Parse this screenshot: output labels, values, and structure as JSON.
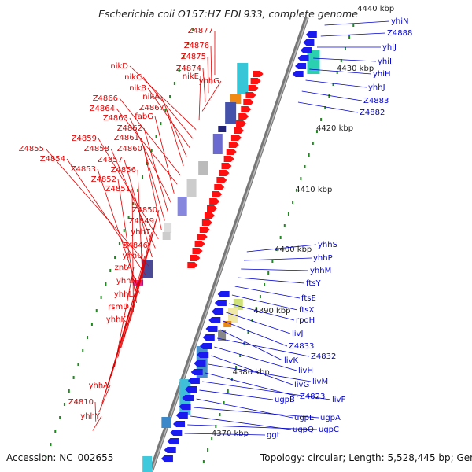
{
  "title": "Escherichia coli O157:H7 EDL933, complete genome",
  "accession": "Accession: NC_002655",
  "topology": "Topology: circular; Length: 5,528,445 bp; Genes: 5,426",
  "colors": {
    "forward_label": "#e00000",
    "reverse_label": "#0000cc",
    "forward_gene": "#ff1010",
    "reverse_gene": "#1a1aee",
    "backbone": "#888888",
    "ruler_tick": "#228822"
  },
  "ruler": [
    {
      "label": "4440 kbp",
      "kbp": 4440
    },
    {
      "label": "4430 kbp",
      "kbp": 4430
    },
    {
      "label": "4420 kbp",
      "kbp": 4420
    },
    {
      "label": "4410 kbp",
      "kbp": 4410
    },
    {
      "label": "4400 kbp",
      "kbp": 4400
    },
    {
      "label": "4390 kbp",
      "kbp": 4390
    },
    {
      "label": "4380 kbp",
      "kbp": 4380
    },
    {
      "label": "4370 kbp",
      "kbp": 4370
    }
  ],
  "forward_genes": [
    "Z4877",
    "Z4876",
    "Z4875",
    "Z4874",
    "yhhG",
    "nikE",
    "nikD",
    "nikC",
    "nikB",
    "nikA",
    "Z4867",
    "Z4866",
    "Z4864",
    "fabG",
    "Z4863",
    "Z4862",
    "Z4861",
    "Z4860",
    "Z4859",
    "Z4858",
    "Z4857",
    "Z4855",
    "Z4854",
    "Z4856",
    "Z4853",
    "Z4852",
    "Z4851",
    "Z4850",
    "Z4849",
    "yhhT",
    "Z4846",
    "yhhQ",
    "zntA",
    "yhhN",
    "yhhL",
    "rsmD",
    "yhhK",
    "yhhA",
    "Z4810",
    "yhhY"
  ],
  "reverse_genes": [
    "yhiN",
    "Z4888",
    "yhiJ",
    "yhiI",
    "yhiH",
    "yhhJ",
    "Z4883",
    "Z4882",
    "yhhS",
    "yhhP",
    "yhhM",
    "ftsY",
    "ftsE",
    "ftsX",
    "rpoH",
    "livJ",
    "Z4833",
    "livK",
    "Z4832",
    "livH",
    "livG",
    "livM",
    "Z4823",
    "livF",
    "ugpB",
    "ugpE",
    "ugpA",
    "ugpQ",
    "ugpC",
    "ggt"
  ]
}
